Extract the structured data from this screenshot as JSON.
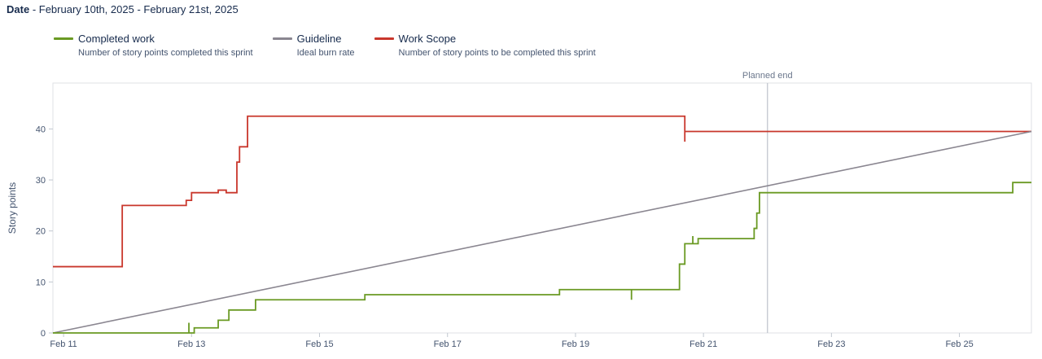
{
  "header": {
    "date_label": "Date",
    "date_range": "- February 10th, 2025 - February 21st, 2025"
  },
  "legend": [
    {
      "label": "Completed work",
      "description": "Number of story points completed this sprint",
      "color": "#6a9a23"
    },
    {
      "label": "Guideline",
      "description": "Ideal burn rate",
      "color": "#8a8690"
    },
    {
      "label": "Work Scope",
      "description": "Number of story points to be completed this sprint",
      "color": "#c9372c"
    }
  ],
  "chart_data": {
    "type": "line",
    "ylabel": "Story points",
    "xlabel": "",
    "ylim": [
      0,
      49
    ],
    "xlim": [
      "2025-02-10 20:00",
      "2025-02-26 03:00"
    ],
    "yticks": [
      0,
      10,
      20,
      30,
      40
    ],
    "xticks": [
      "Feb 11",
      "Feb 13",
      "Feb 15",
      "Feb 17",
      "Feb 19",
      "Feb 21",
      "Feb 23",
      "Feb 25"
    ],
    "xtick_dates": [
      "2025-02-11 00:00",
      "2025-02-13 00:00",
      "2025-02-15 00:00",
      "2025-02-17 00:00",
      "2025-02-19 00:00",
      "2025-02-21 00:00",
      "2025-02-23 00:00",
      "2025-02-25 00:00"
    ],
    "marker": {
      "label": "Planned end",
      "x": "2025-02-22 00:00",
      "color": "#c1c7d0"
    },
    "grid": false,
    "series": [
      {
        "name": "Work Scope",
        "color": "#c9372c",
        "step": true,
        "points": [
          [
            "2025-02-10 20:00",
            13
          ],
          [
            "2025-02-11 22:00",
            13
          ],
          [
            "2025-02-11 22:00",
            25
          ],
          [
            "2025-02-12 22:00",
            25
          ],
          [
            "2025-02-12 22:00",
            26
          ],
          [
            "2025-02-13 00:00",
            26
          ],
          [
            "2025-02-13 00:00",
            27.5
          ],
          [
            "2025-02-13 10:00",
            27.5
          ],
          [
            "2025-02-13 10:00",
            28
          ],
          [
            "2025-02-13 13:00",
            28
          ],
          [
            "2025-02-13 13:00",
            27.5
          ],
          [
            "2025-02-13 17:00",
            27.5
          ],
          [
            "2025-02-13 17:00",
            33.5
          ],
          [
            "2025-02-13 18:00",
            33.5
          ],
          [
            "2025-02-13 18:00",
            36.5
          ],
          [
            "2025-02-13 21:00",
            36.5
          ],
          [
            "2025-02-13 21:00",
            42.5
          ],
          [
            "2025-02-20 17:00",
            42.5
          ],
          [
            "2025-02-20 17:00",
            37.5
          ],
          [
            "2025-02-20 17:00",
            39.5
          ],
          [
            "2025-02-26 03:00",
            39.5
          ]
        ]
      },
      {
        "name": "Guideline",
        "color": "#8a8690",
        "step": false,
        "points": [
          [
            "2025-02-10 20:00",
            0
          ],
          [
            "2025-02-26 03:00",
            39.5
          ]
        ]
      },
      {
        "name": "Completed work",
        "color": "#6a9a23",
        "step": true,
        "points": [
          [
            "2025-02-10 20:00",
            0
          ],
          [
            "2025-02-12 23:00",
            0
          ],
          [
            "2025-02-12 23:00",
            2
          ],
          [
            "2025-02-12 23:00",
            0
          ],
          [
            "2025-02-13 01:00",
            0
          ],
          [
            "2025-02-13 01:00",
            1
          ],
          [
            "2025-02-13 10:00",
            1
          ],
          [
            "2025-02-13 10:00",
            2.5
          ],
          [
            "2025-02-13 14:00",
            2.5
          ],
          [
            "2025-02-13 14:00",
            4.5
          ],
          [
            "2025-02-14 00:00",
            4.5
          ],
          [
            "2025-02-14 00:00",
            5
          ],
          [
            "2025-02-14 00:00",
            6.5
          ],
          [
            "2025-02-15 17:00",
            6.5
          ],
          [
            "2025-02-15 17:00",
            7.5
          ],
          [
            "2025-02-18 18:00",
            7.5
          ],
          [
            "2025-02-18 18:00",
            8.5
          ],
          [
            "2025-02-19 21:00",
            8.5
          ],
          [
            "2025-02-19 21:00",
            6.5
          ],
          [
            "2025-02-19 21:00",
            8.5
          ],
          [
            "2025-02-20 15:00",
            8.5
          ],
          [
            "2025-02-20 15:00",
            13.5
          ],
          [
            "2025-02-20 17:00",
            13.5
          ],
          [
            "2025-02-20 17:00",
            16
          ],
          [
            "2025-02-20 17:00",
            17.5
          ],
          [
            "2025-02-20 20:00",
            17.5
          ],
          [
            "2025-02-20 20:00",
            19
          ],
          [
            "2025-02-20 20:00",
            17.5
          ],
          [
            "2025-02-20 22:00",
            17.5
          ],
          [
            "2025-02-20 22:00",
            18.5
          ],
          [
            "2025-02-21 19:00",
            18.5
          ],
          [
            "2025-02-21 19:00",
            20.5
          ],
          [
            "2025-02-21 20:00",
            20.5
          ],
          [
            "2025-02-21 20:00",
            23.5
          ],
          [
            "2025-02-21 21:00",
            23.5
          ],
          [
            "2025-02-21 21:00",
            27.5
          ],
          [
            "2025-02-25 20:00",
            27.5
          ],
          [
            "2025-02-25 20:00",
            29.5
          ],
          [
            "2025-02-26 03:00",
            29.5
          ]
        ]
      }
    ]
  }
}
